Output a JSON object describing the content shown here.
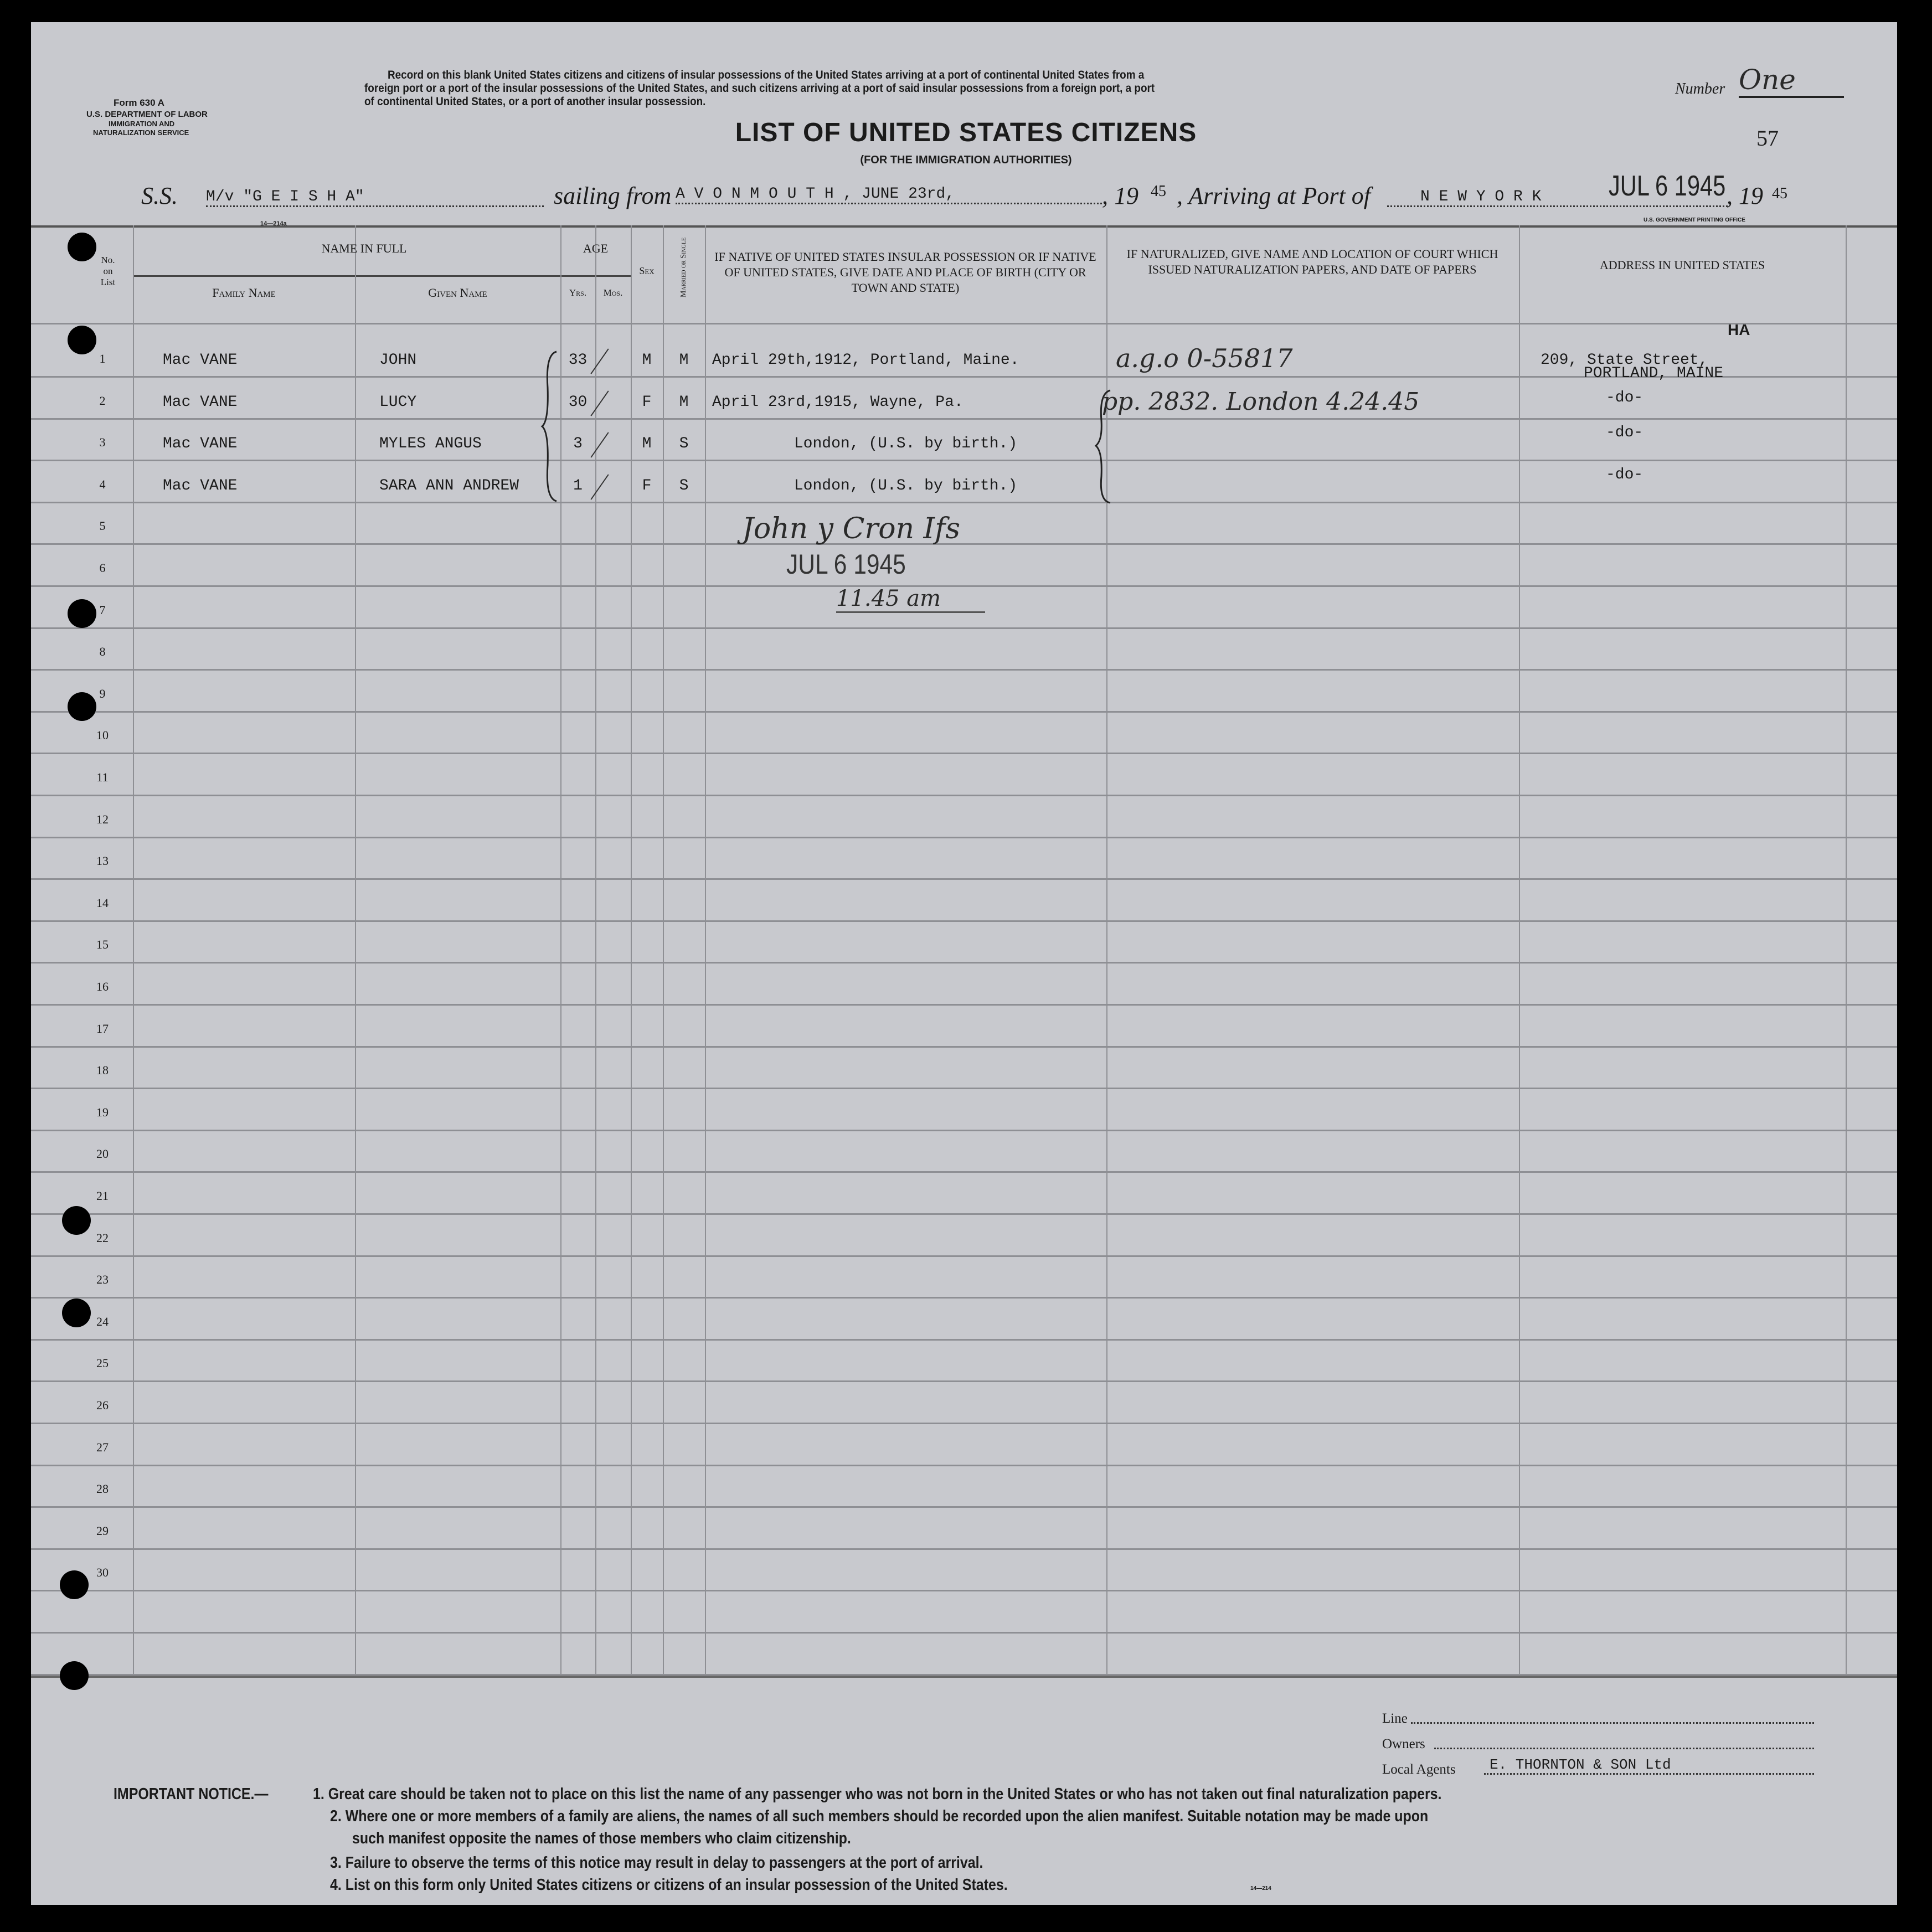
{
  "form": {
    "form_no": "Form 630 A",
    "department": "U.S. DEPARTMENT OF LABOR",
    "service_1": "IMMIGRATION AND",
    "service_2": "NATURALIZATION SERVICE",
    "instructions": [
      "Record on this blank United States citizens and citizens of insular possessions of the United States arriving at a port of continental United States from a",
      "foreign port or a port of the insular possessions of the United States, and such citizens arriving at a port of said insular possessions from a foreign port, a port",
      "of continental United States, or a port of another insular possession."
    ],
    "number_label": "Number",
    "number_value": "One",
    "page_number": "57",
    "title": "LIST OF UNITED STATES CITIZENS",
    "subtitle": "(FOR THE IMMIGRATION AUTHORITIES)",
    "printer": "U.S. GOVERNMENT PRINTING OFFICE",
    "form_code": "14—214a",
    "form_code_bottom": "14—214"
  },
  "voyage": {
    "ss_label": "S.S.",
    "ship": "M/v \"G E I S H A\"",
    "sailing_label": "sailing from",
    "port_from": "A V O N M O U T H ,  JUNE 23rd,",
    "year_prefix": ", 19",
    "year": "45",
    "arriving_label": ", Arriving at Port of",
    "port_to": "N E W   Y O R K",
    "stamp": "JUL 6 1945",
    "year_prefix2": ", 19",
    "year2": "45"
  },
  "headers": {
    "no": [
      "No.",
      "on",
      "List"
    ],
    "name_in_full": "NAME IN FULL",
    "family_name": "Family Name",
    "given_name": "Given Name",
    "age": "AGE",
    "yrs": "Yrs.",
    "mos": "Mos.",
    "sex": "Sex",
    "married": "Married or Single",
    "birth": "IF NATIVE OF UNITED STATES INSULAR POSSESSION OR IF NATIVE OF UNITED STATES, GIVE DATE AND PLACE OF BIRTH (CITY OR TOWN AND STATE)",
    "naturalized": "IF NATURALIZED, GIVE NAME AND LOCATION OF COURT WHICH ISSUED NATURALIZATION PAPERS, AND DATE OF PAPERS",
    "address": "ADDRESS IN UNITED STATES"
  },
  "row_numbers": [
    "1",
    "2",
    "3",
    "4",
    "5",
    "6",
    "7",
    "8",
    "9",
    "10",
    "11",
    "12",
    "13",
    "14",
    "15",
    "16",
    "17",
    "18",
    "19",
    "20",
    "21",
    "22",
    "23",
    "24",
    "25",
    "26",
    "27",
    "28",
    "29",
    "30"
  ],
  "passengers": [
    {
      "family": "Mac VANE",
      "given": "JOHN",
      "yrs": "33",
      "sex": "M",
      "marital": "M",
      "birth": "April 29th,1912, Portland, Maine.",
      "address": "209, State Street,",
      "address2": "PORTLAND, MAINE"
    },
    {
      "family": "Mac VANE",
      "given": "LUCY",
      "yrs": "30",
      "sex": "F",
      "marital": "M",
      "birth": "April 23rd,1915, Wayne, Pa.",
      "address": "-do-",
      "address2": ""
    },
    {
      "family": "Mac VANE",
      "given": "MYLES ANGUS",
      "yrs": "3",
      "sex": "M",
      "marital": "S",
      "birth": "London, (U.S. by birth.)",
      "address": "-do-",
      "address2": ""
    },
    {
      "family": "Mac VANE",
      "given": "SARA ANN ANDREW",
      "yrs": "1",
      "sex": "F",
      "marital": "S",
      "birth": "London, (U.S. by birth.)",
      "address": "-do-",
      "address2": ""
    }
  ],
  "annotations": {
    "naturalization_1": "a.g.o   0-55817",
    "naturalization_2": "pp. 2832. London 4.24.45",
    "address_mark": "HA",
    "signature": "John y Cron Ifs",
    "stamp": "JUL 6 1945",
    "time": "11.45 am"
  },
  "footer": {
    "line_label": "Line",
    "line_value": "",
    "owners_label": "Owners",
    "owners_value": "",
    "agents_label": "Local Agents",
    "agents_value": "E. THORNTON & SON Ltd",
    "notice_title": "IMPORTANT NOTICE.—",
    "notices": [
      "1. Great care should be taken not to place on this list the name of any passenger who was not born in the United States or who has not taken out final naturalization papers.",
      "2. Where one or more members of a family are aliens, the names of all such members should be recorded upon the alien manifest.  Suitable notation may be made upon",
      "such manifest opposite the names of those members who claim citizenship.",
      "3. Failure to observe the terms of this notice may result in delay to passengers at the port of arrival.",
      "4. List on this form only United States citizens or citizens of an insular possession of the United States."
    ]
  }
}
